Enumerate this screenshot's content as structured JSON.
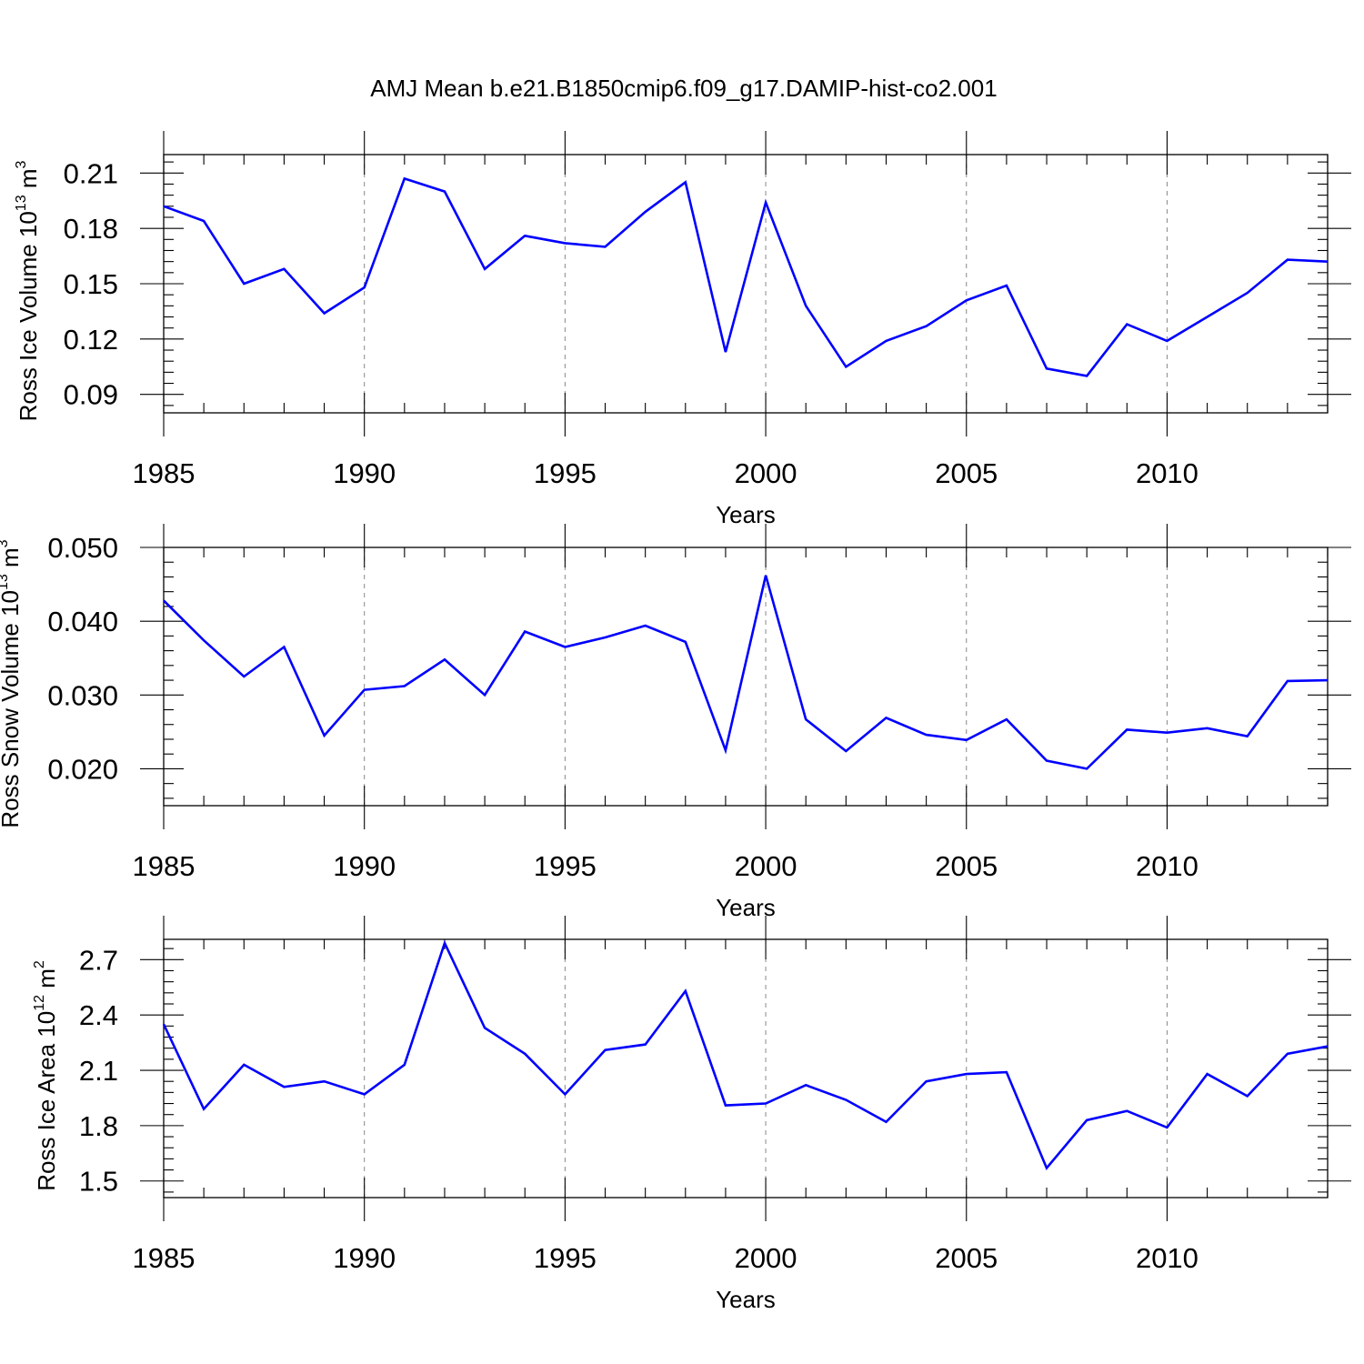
{
  "title": "AMJ Mean b.e21.B1850cmip6.f09_g17.DAMIP-hist-co2.001",
  "line_color": "#0000ff",
  "chart_data": [
    {
      "type": "line",
      "ylabel_main": "Ross Ice Volume 10",
      "ylabel_exp": "13",
      "ylabel_unit": " m",
      "ylabel_unit_exp": "3",
      "xlabel": "Years",
      "xlim": [
        1985,
        2014
      ],
      "ylim": [
        0.08,
        0.22
      ],
      "grid": "dashed vertical at major x ticks",
      "xticks": [
        1985,
        1990,
        1995,
        2000,
        2005,
        2010
      ],
      "xtick_labels": [
        "1985",
        "1990",
        "1995",
        "2000",
        "2005",
        "2010"
      ],
      "yticks": [
        0.09,
        0.12,
        0.15,
        0.18,
        0.21
      ],
      "ytick_labels": [
        "0.09",
        "0.12",
        "0.15",
        "0.18",
        "0.21"
      ],
      "x": [
        1985,
        1986,
        1987,
        1988,
        1989,
        1990,
        1991,
        1992,
        1993,
        1994,
        1995,
        1996,
        1997,
        1998,
        1999,
        2000,
        2001,
        2002,
        2003,
        2004,
        2005,
        2006,
        2007,
        2008,
        2009,
        2010,
        2011,
        2012,
        2013,
        2014
      ],
      "values": [
        0.192,
        0.184,
        0.15,
        0.158,
        0.134,
        0.148,
        0.207,
        0.2,
        0.158,
        0.176,
        0.172,
        0.17,
        0.189,
        0.205,
        0.113,
        0.194,
        0.138,
        0.105,
        0.119,
        0.127,
        0.141,
        0.149,
        0.104,
        0.1,
        0.128,
        0.119,
        0.132,
        0.145,
        0.163,
        0.162
      ]
    },
    {
      "type": "line",
      "ylabel_main": "Ross Snow Volume 10",
      "ylabel_exp": "13",
      "ylabel_unit": " m",
      "ylabel_unit_exp": "3",
      "xlabel": "Years",
      "xlim": [
        1985,
        2014
      ],
      "ylim": [
        0.015,
        0.05
      ],
      "grid": "dashed vertical at major x ticks",
      "xticks": [
        1985,
        1990,
        1995,
        2000,
        2005,
        2010
      ],
      "xtick_labels": [
        "1985",
        "1990",
        "1995",
        "2000",
        "2005",
        "2010"
      ],
      "yticks": [
        0.02,
        0.03,
        0.04,
        0.05
      ],
      "ytick_labels": [
        "0.020",
        "0.030",
        "0.040",
        "0.050"
      ],
      "x": [
        1985,
        1986,
        1987,
        1988,
        1989,
        1990,
        1991,
        1992,
        1993,
        1994,
        1995,
        1996,
        1997,
        1998,
        1999,
        2000,
        2001,
        2002,
        2003,
        2004,
        2005,
        2006,
        2007,
        2008,
        2009,
        2010,
        2011,
        2012,
        2013,
        2014
      ],
      "values": [
        0.0428,
        0.0374,
        0.0325,
        0.0365,
        0.0245,
        0.0307,
        0.0312,
        0.0348,
        0.03,
        0.0386,
        0.0365,
        0.0378,
        0.0394,
        0.0372,
        0.0225,
        0.0462,
        0.0267,
        0.0224,
        0.0269,
        0.0246,
        0.0239,
        0.0267,
        0.0211,
        0.02,
        0.0253,
        0.0249,
        0.0255,
        0.0244,
        0.0319,
        0.032
      ]
    },
    {
      "type": "line",
      "ylabel_main": "Ross Ice Area 10",
      "ylabel_exp": "12",
      "ylabel_unit": " m",
      "ylabel_unit_exp": "2",
      "xlabel": "Years",
      "xlim": [
        1985,
        2014
      ],
      "ylim": [
        1.41,
        2.81
      ],
      "grid": "dashed vertical at major x ticks",
      "xticks": [
        1985,
        1990,
        1995,
        2000,
        2005,
        2010
      ],
      "xtick_labels": [
        "1985",
        "1990",
        "1995",
        "2000",
        "2005",
        "2010"
      ],
      "yticks": [
        1.5,
        1.8,
        2.1,
        2.4,
        2.7
      ],
      "ytick_labels": [
        "1.5",
        "1.8",
        "2.1",
        "2.4",
        "2.7"
      ],
      "x": [
        1985,
        1986,
        1987,
        1988,
        1989,
        1990,
        1991,
        1992,
        1993,
        1994,
        1995,
        1996,
        1997,
        1998,
        1999,
        2000,
        2001,
        2002,
        2003,
        2004,
        2005,
        2006,
        2007,
        2008,
        2009,
        2010,
        2011,
        2012,
        2013,
        2014
      ],
      "values": [
        2.35,
        1.89,
        2.13,
        2.01,
        2.04,
        1.97,
        2.13,
        2.79,
        2.33,
        2.19,
        1.97,
        2.21,
        2.24,
        2.53,
        1.91,
        1.92,
        2.02,
        1.94,
        1.82,
        2.04,
        2.08,
        2.09,
        1.57,
        1.83,
        1.88,
        1.79,
        2.08,
        1.96,
        2.19,
        2.23
      ]
    }
  ]
}
